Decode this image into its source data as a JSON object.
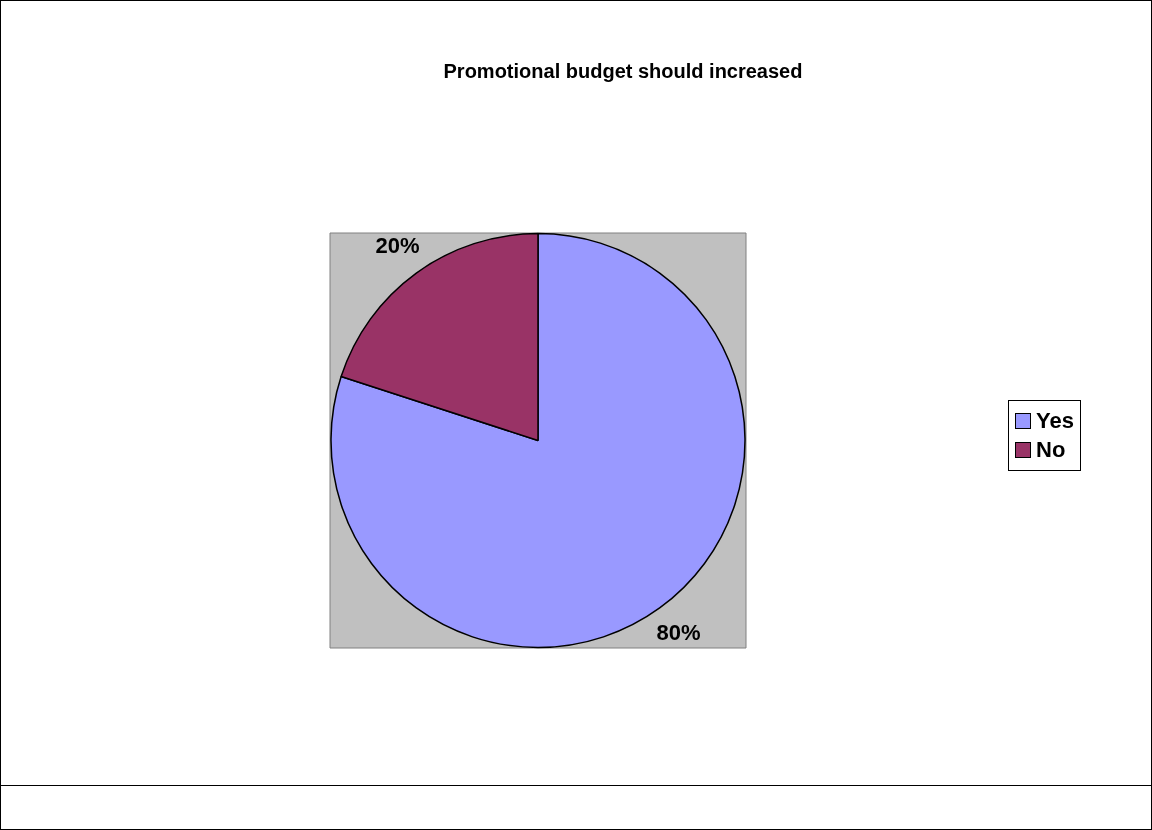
{
  "chart_data": {
    "type": "pie",
    "title": "Promotional budget should increased",
    "categories": [
      "Yes",
      "No"
    ],
    "values": [
      80,
      20
    ],
    "colors": [
      "#9999ff",
      "#993366"
    ],
    "value_labels": [
      "80%",
      "20%"
    ],
    "legend": "right"
  }
}
